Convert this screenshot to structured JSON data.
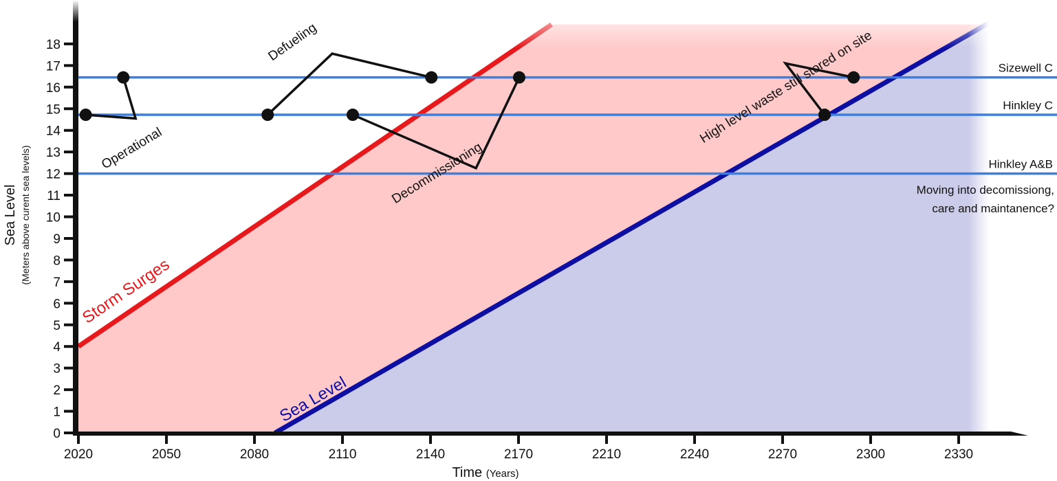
{
  "chart_data": {
    "type": "line",
    "xlabel": "Time",
    "xlabel_unit": "(Years)",
    "ylabel": "Sea Level",
    "ylabel_sub": "(Meters above curent sea levels)",
    "xlim": [
      2020,
      2350
    ],
    "ylim": [
      0,
      18
    ],
    "x_ticks": [
      2020,
      2050,
      2080,
      2110,
      2140,
      2170,
      2210,
      2240,
      2270,
      2300,
      2330
    ],
    "y_ticks": [
      0,
      1,
      2,
      3,
      4,
      5,
      6,
      7,
      8,
      9,
      10,
      11,
      12,
      13,
      14,
      15,
      16,
      17,
      18
    ],
    "bands": [
      {
        "name": "Storm Surges",
        "color": "#e8191c",
        "fill": "#ffc9c9",
        "x": [
          2020,
          2185
        ],
        "y": [
          4,
          18.9
        ]
      },
      {
        "name": "Sea Level",
        "color": "#0d0fa3",
        "fill": "#cbcbea",
        "x": [
          2087,
          2342
        ],
        "y": [
          0,
          19.1
        ]
      }
    ],
    "reference_lines": [
      {
        "name": "Sizewell C",
        "y": 16.45,
        "color": "#3b7fe0"
      },
      {
        "name": "Hinkley C",
        "y": 14.72,
        "color": "#3b7fe0"
      },
      {
        "name": "Hinkley A&B",
        "y": 12.0,
        "color": "#3b7fe0"
      }
    ],
    "phases": [
      {
        "label": "Operational",
        "points": [
          [
            2022.5,
            14.72
          ],
          [
            2035.3,
            16.45
          ]
        ],
        "vertex": [
          2039.5,
          14.55
        ]
      },
      {
        "label": "Defueling",
        "points": [
          [
            2084.5,
            14.72
          ],
          [
            2140.3,
            16.45
          ]
        ],
        "vertex": [
          2106.5,
          17.55
        ]
      },
      {
        "label": "Decommissioning",
        "points": [
          [
            2113.5,
            14.72
          ],
          [
            2170.3,
            16.45
          ]
        ],
        "vertex": [
          2155.5,
          12.25
        ]
      },
      {
        "label": "High level waste still stored on site",
        "points": [
          [
            2284.3,
            14.72
          ],
          [
            2294.2,
            16.45
          ]
        ],
        "vertex": [
          2271.0,
          17.1
        ]
      }
    ],
    "note": [
      "Moving into decomissiong,",
      "care and maintanence?"
    ]
  }
}
